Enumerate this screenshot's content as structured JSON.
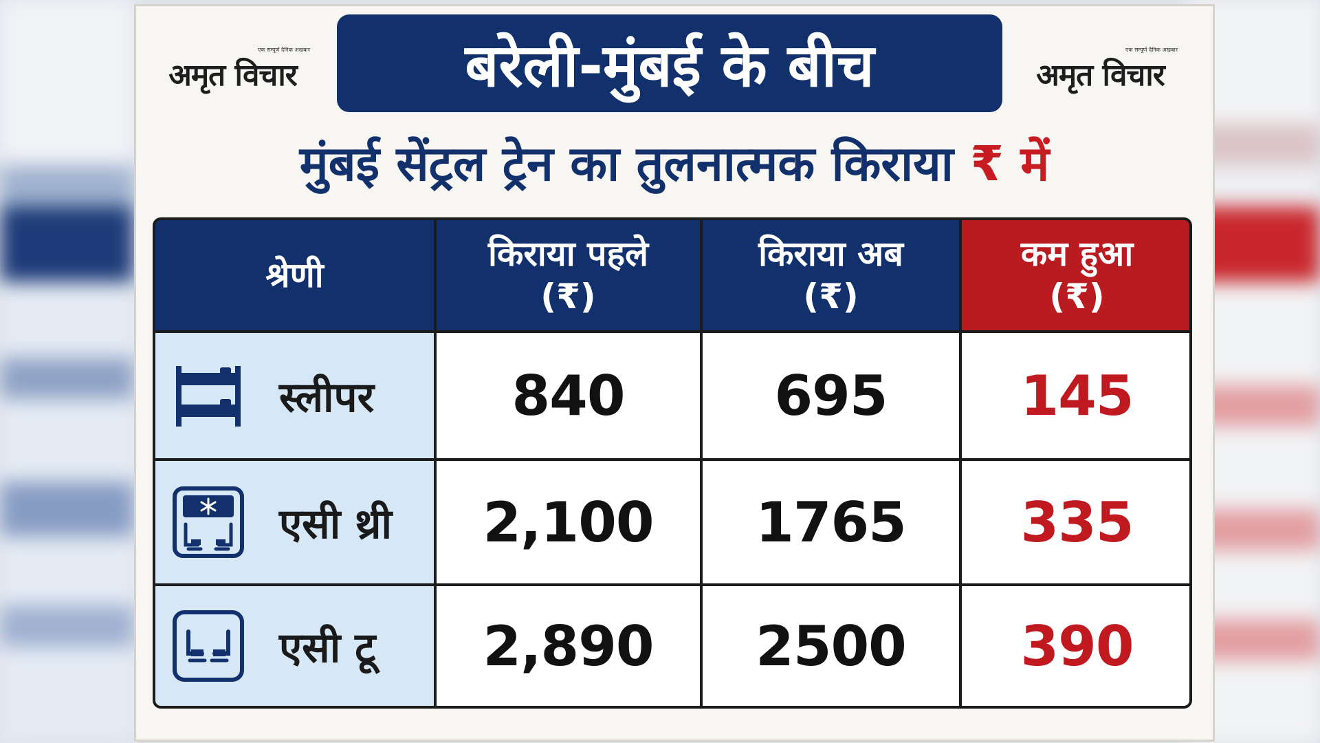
{
  "logo": {
    "name": "अमृत विचार",
    "tagline": "एक सम्पूर्ण दैनिक अखबार"
  },
  "title": "बरेली-मुंबई के बीच",
  "subtitle": {
    "text": "मुंबई सेंट्रल ट्रेन  का तुलनात्मक किराया",
    "currency": "₹ में"
  },
  "table": {
    "headers": {
      "category": "श्रेणी",
      "fare_before": "किराया पहले",
      "fare_before_unit": "(₹)",
      "fare_now": "किराया अब",
      "fare_now_unit": "(₹)",
      "reduced": "कम हुआ",
      "reduced_unit": "(₹)"
    },
    "rows": [
      {
        "icon": "bunk-bed-icon",
        "category": "स्लीपर",
        "before": "840",
        "now": "695",
        "reduced": "145"
      },
      {
        "icon": "ac-coach-snowflake-icon",
        "category": "एसी थ्री",
        "before": "2,100",
        "now": "1765",
        "reduced": "335"
      },
      {
        "icon": "seats-icon",
        "category": "एसी टू",
        "before": "2,890",
        "now": "2500",
        "reduced": "390"
      }
    ]
  },
  "colors": {
    "navy": "#12306b",
    "red": "#c0191f",
    "category_bg": "#d6e7f6",
    "card_bg": "#f7f6f2"
  }
}
